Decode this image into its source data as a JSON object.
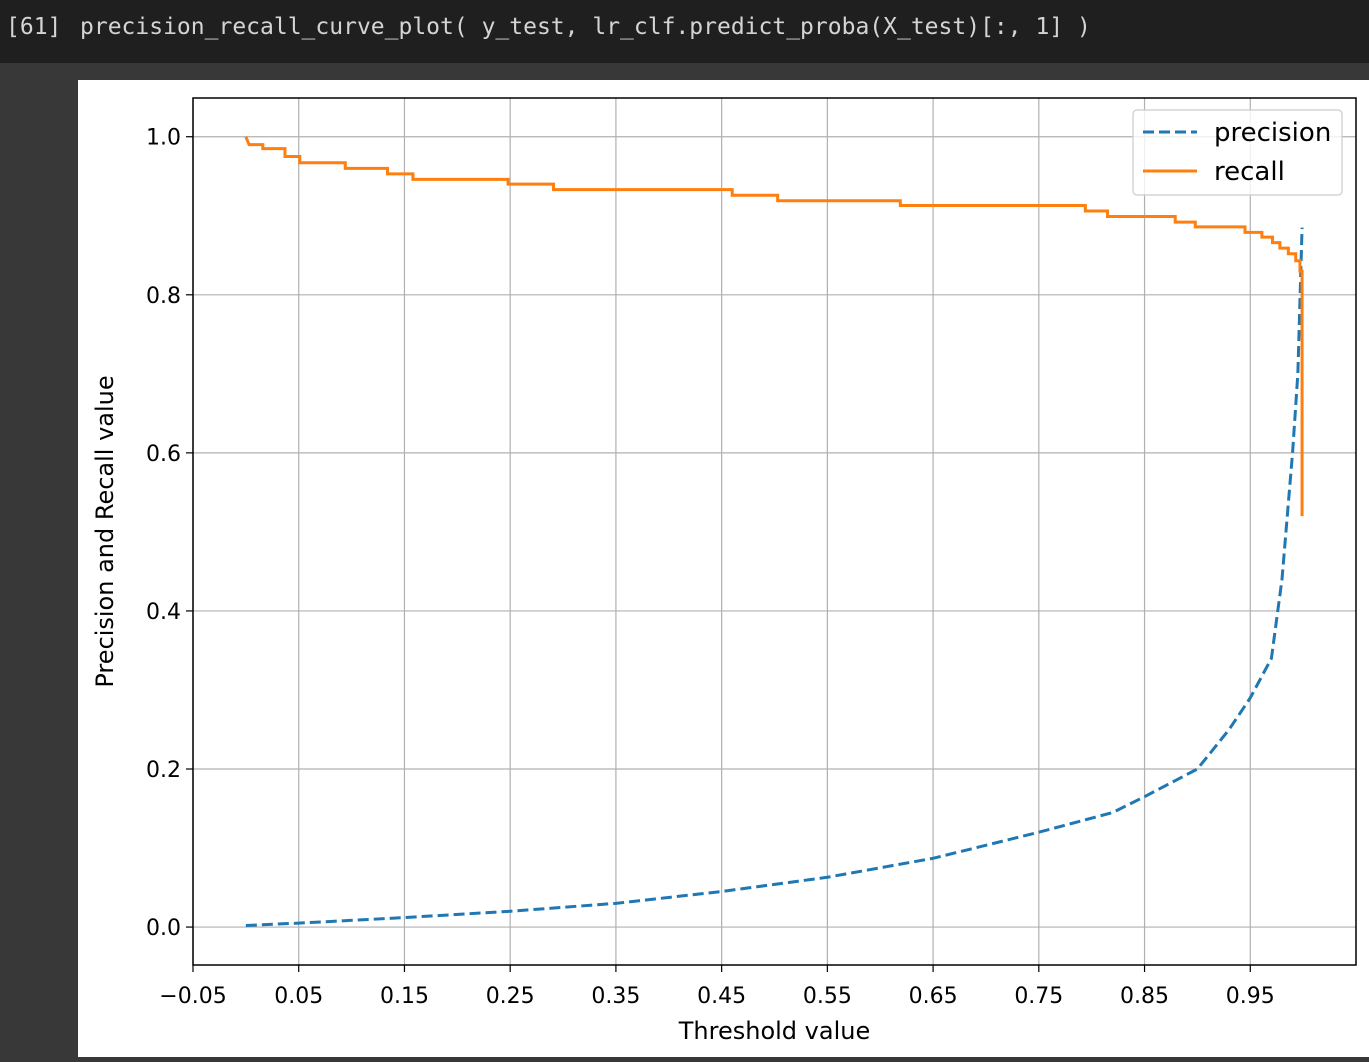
{
  "cell": {
    "prompt": "[61]",
    "code": "precision_recall_curve_plot( y_test, lr_clf.predict_proba(X_test)[:, 1] )"
  },
  "chart_data": {
    "type": "line",
    "xlabel": "Threshold value",
    "ylabel": "Precision and Recall value",
    "xlim": [
      -0.05,
      1.05
    ],
    "ylim": [
      -0.048,
      1.049
    ],
    "xticks": [
      {
        "value": -0.05,
        "label": "−0.05"
      },
      0.05,
      0.15,
      0.25,
      0.35,
      0.45,
      0.55,
      0.65,
      0.75,
      0.85,
      0.95
    ],
    "yticks": [
      {
        "value": 0,
        "label": "0.0"
      },
      0.2,
      0.4,
      0.6,
      0.8,
      {
        "value": 1,
        "label": "1.0"
      }
    ],
    "grid": true,
    "legend": "upper right",
    "series": [
      {
        "name": "precision",
        "color": "#1f77b4",
        "linestyle": "dashed",
        "x": [
          0,
          0.05,
          0.15,
          0.25,
          0.35,
          0.45,
          0.55,
          0.65,
          0.75,
          0.82,
          0.85,
          0.9,
          0.93,
          0.95,
          0.97,
          0.98,
          0.99,
          0.995,
          0.999
        ],
        "values": [
          0.002,
          0.005,
          0.012,
          0.02,
          0.03,
          0.045,
          0.063,
          0.087,
          0.12,
          0.145,
          0.165,
          0.2,
          0.25,
          0.29,
          0.34,
          0.44,
          0.6,
          0.7,
          0.885
        ]
      },
      {
        "name": "recall",
        "color": "#ff7f0e",
        "linestyle": "solid",
        "x": [
          0,
          0.003,
          0.016,
          0.016,
          0.037,
          0.037,
          0.051,
          0.051,
          0.094,
          0.094,
          0.134,
          0.134,
          0.158,
          0.158,
          0.248,
          0.248,
          0.291,
          0.291,
          0.46,
          0.46,
          0.503,
          0.503,
          0.619,
          0.619,
          0.794,
          0.794,
          0.815,
          0.815,
          0.879,
          0.879,
          0.898,
          0.898,
          0.945,
          0.945,
          0.961,
          0.961,
          0.971,
          0.971,
          0.978,
          0.978,
          0.986,
          0.986,
          0.993,
          0.993,
          0.997,
          0.997,
          0.999,
          0.999
        ],
        "values": [
          1.0,
          0.99,
          0.99,
          0.985,
          0.985,
          0.975,
          0.975,
          0.967,
          0.967,
          0.96,
          0.96,
          0.953,
          0.953,
          0.946,
          0.946,
          0.94,
          0.94,
          0.933,
          0.933,
          0.926,
          0.926,
          0.919,
          0.919,
          0.913,
          0.913,
          0.906,
          0.906,
          0.899,
          0.899,
          0.892,
          0.892,
          0.886,
          0.886,
          0.879,
          0.879,
          0.873,
          0.873,
          0.866,
          0.866,
          0.859,
          0.859,
          0.852,
          0.852,
          0.843,
          0.843,
          0.83,
          0.83,
          0.52
        ]
      }
    ]
  }
}
